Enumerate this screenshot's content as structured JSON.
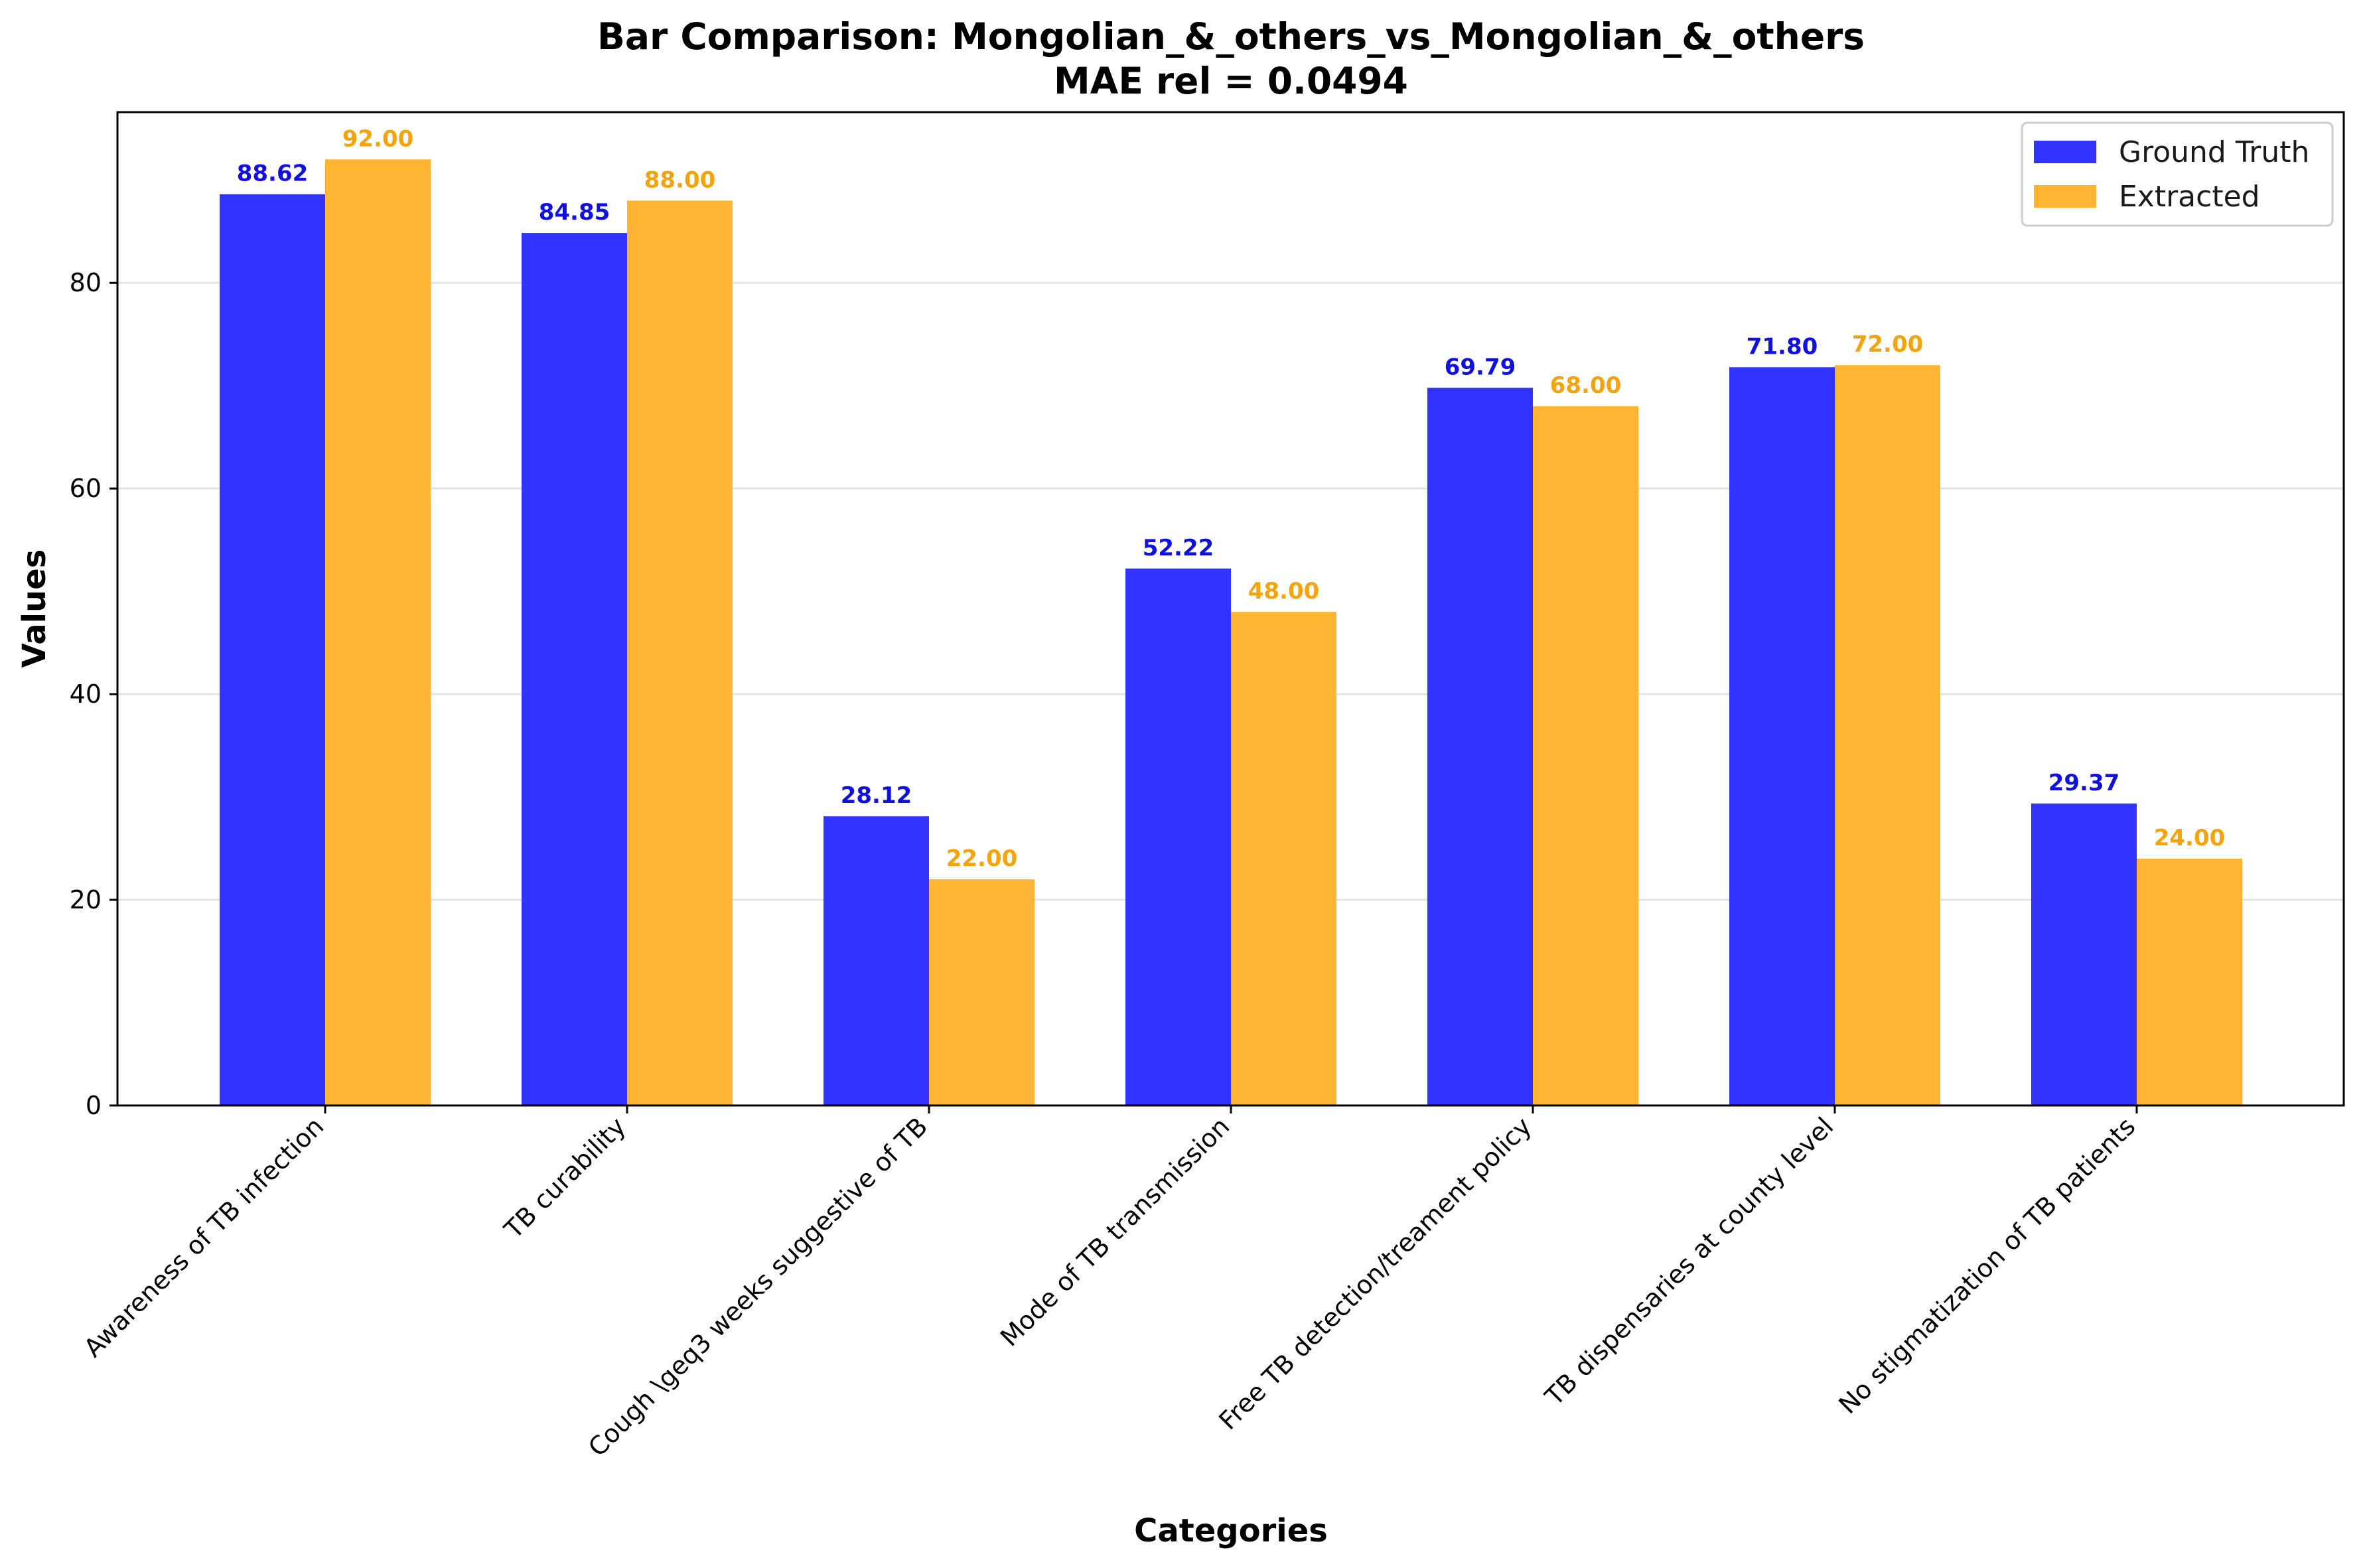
{
  "chart_data": {
    "type": "bar",
    "title": "Bar Comparison: Mongolian_&_others_vs_Mongolian_&_others",
    "subtitle": "MAE rel = 0.0494",
    "xlabel": "Categories",
    "ylabel": "Values",
    "ylim": [
      0,
      96.6
    ],
    "yticks": [
      0,
      20,
      40,
      60,
      80
    ],
    "grid": "horizontal",
    "legend_position": "top-right",
    "categories": [
      "Awareness of TB infection",
      "TB curability",
      "Cough \\geq3 weeks suggestive of TB",
      "Mode of TB transmission",
      "Free TB detection/treament policy",
      "TB dispensaries at county level",
      "No stigmatization of TB patients"
    ],
    "series": [
      {
        "name": "Ground Truth",
        "color": "#3333ff",
        "label_color": "#1010e0",
        "values": [
          88.62,
          84.85,
          28.12,
          52.22,
          69.79,
          71.8,
          29.37
        ],
        "labels": [
          "88.62",
          "84.85",
          "28.12",
          "52.22",
          "69.79",
          "71.80",
          "29.37"
        ]
      },
      {
        "name": "Extracted",
        "color": "#ffb533",
        "label_color": "#f5a30a",
        "values": [
          92.0,
          88.0,
          22.0,
          48.0,
          68.0,
          72.0,
          24.0
        ],
        "labels": [
          "92.00",
          "88.00",
          "22.00",
          "48.00",
          "68.00",
          "72.00",
          "24.00"
        ]
      }
    ]
  }
}
